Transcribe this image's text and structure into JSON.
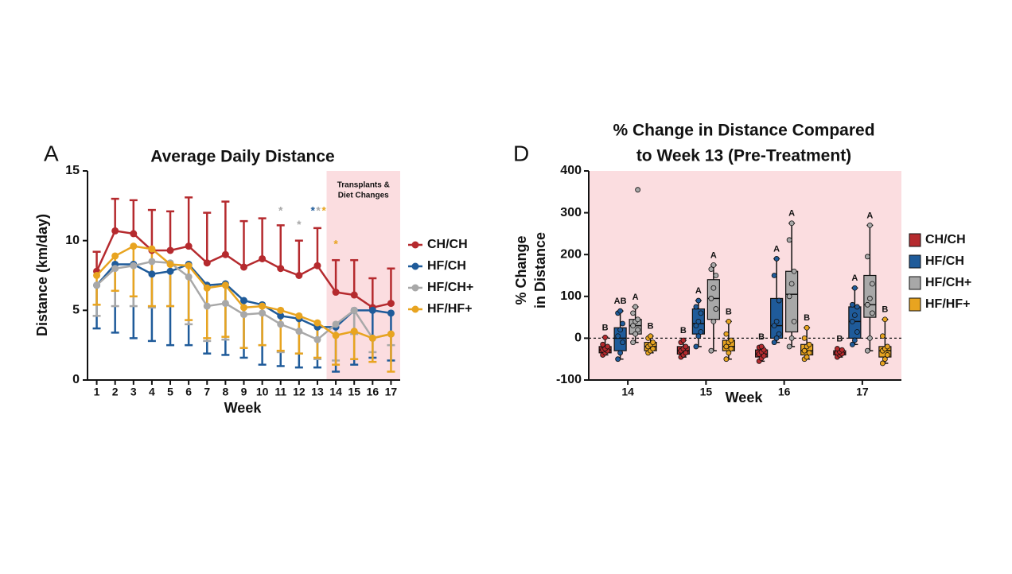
{
  "chart_data": [
    {
      "type": "line",
      "panel": "A",
      "title": "Average Daily Distance",
      "x_label": "Week",
      "y_label": "Distance (km/day)",
      "x": [
        1,
        2,
        3,
        4,
        5,
        6,
        7,
        8,
        9,
        10,
        11,
        12,
        13,
        14,
        15,
        16,
        17
      ],
      "xlim": [
        0.5,
        17.5
      ],
      "xticks": [
        1,
        2,
        3,
        4,
        5,
        6,
        7,
        8,
        9,
        10,
        11,
        12,
        13,
        14,
        15,
        16,
        17
      ],
      "ylim": [
        0,
        15
      ],
      "yticks": [
        0,
        5,
        10,
        15
      ],
      "shade": {
        "from": 13.5,
        "to": 17.5,
        "color": "#fbdde0",
        "label": [
          "Transplants &",
          "Diet Changes"
        ]
      },
      "series": [
        {
          "name": "CH/CH",
          "color": "#b52a2e",
          "error_direction": "up",
          "values": [
            7.8,
            10.7,
            10.5,
            9.3,
            9.3,
            9.6,
            8.4,
            9.0,
            8.1,
            8.7,
            8.0,
            7.5,
            8.2,
            6.3,
            6.1,
            5.2,
            5.5
          ],
          "errors": [
            1.4,
            2.3,
            2.4,
            2.9,
            2.8,
            3.5,
            3.6,
            3.8,
            3.3,
            2.9,
            3.1,
            2.5,
            2.7,
            2.3,
            2.5,
            2.1,
            2.5
          ]
        },
        {
          "name": "HF/CH",
          "color": "#1f5b9a",
          "error_direction": "down",
          "values": [
            6.8,
            8.3,
            8.3,
            7.6,
            7.8,
            8.3,
            6.8,
            6.9,
            5.7,
            5.4,
            4.6,
            4.4,
            3.8,
            3.8,
            5.0,
            5.0,
            4.8
          ],
          "errors": [
            3.1,
            4.9,
            5.3,
            4.8,
            5.3,
            5.8,
            4.9,
            5.1,
            4.1,
            4.3,
            3.6,
            3.5,
            2.9,
            3.2,
            3.9,
            3.4,
            3.4
          ]
        },
        {
          "name": "HF/CH+",
          "color": "#a8a8a8",
          "error_direction": "down",
          "values": [
            6.8,
            8.0,
            8.2,
            8.5,
            8.4,
            7.4,
            5.3,
            5.5,
            4.7,
            4.8,
            4.0,
            3.5,
            2.9,
            4.0,
            5.0,
            3.0,
            3.3
          ],
          "errors": [
            2.2,
            2.7,
            2.9,
            3.3,
            3.1,
            3.4,
            2.5,
            2.6,
            2.4,
            2.3,
            2.0,
            1.6,
            1.4,
            2.6,
            1.7,
            1.0,
            0.8
          ]
        },
        {
          "name": "HF/HF+",
          "color": "#e8a420",
          "error_direction": "down",
          "values": [
            7.5,
            8.9,
            9.6,
            9.4,
            8.3,
            8.2,
            6.6,
            6.8,
            5.2,
            5.3,
            5.0,
            4.6,
            4.1,
            3.2,
            3.5,
            3.0,
            3.3
          ],
          "errors": [
            2.1,
            2.5,
            3.6,
            4.1,
            3.0,
            3.9,
            3.6,
            3.7,
            2.9,
            2.8,
            2.9,
            2.7,
            2.5,
            2.1,
            2.0,
            1.7,
            2.7
          ]
        }
      ],
      "annotations": [
        {
          "text": "*",
          "x": 11,
          "y": 12.1,
          "color": "#a8a8a8"
        },
        {
          "text": "*",
          "x": 12,
          "y": 11.1,
          "color": "#a8a8a8"
        },
        {
          "text": "*",
          "x": 12.75,
          "y": 12.1,
          "color": "#1f5b9a"
        },
        {
          "text": "*",
          "x": 13.05,
          "y": 12.1,
          "color": "#a8a8a8"
        },
        {
          "text": "*",
          "x": 13.35,
          "y": 12.1,
          "color": "#e8a420"
        },
        {
          "text": "*",
          "x": 14,
          "y": 9.7,
          "color": "#e8a420"
        }
      ]
    },
    {
      "type": "box",
      "panel": "D",
      "title": [
        "% Change in Distance Compared",
        "to Week 13 (Pre-Treatment)"
      ],
      "x_label": "Week",
      "y_label": [
        "% Change",
        "in Distance"
      ],
      "background": "#fbdde0",
      "categories": [
        "14",
        "15",
        "16",
        "17"
      ],
      "ylim": [
        -100,
        400
      ],
      "yticks": [
        -100,
        0,
        100,
        200,
        300,
        400
      ],
      "ref_line": 0,
      "series": [
        {
          "name": "CH/CH",
          "color": "#b52a2e",
          "boxes": [
            {
              "min": -40,
              "q1": -35,
              "median": -28,
              "q3": -20,
              "max": 2,
              "letter": "B",
              "points": [
                -40,
                -35,
                -30,
                -28,
                -25,
                -20,
                -15,
                2
              ]
            },
            {
              "min": -45,
              "q1": -38,
              "median": -30,
              "q3": -20,
              "max": -5,
              "letter": "B",
              "points": [
                -45,
                -40,
                -35,
                -30,
                -25,
                -20,
                -10,
                -5
              ]
            },
            {
              "min": -55,
              "q1": -45,
              "median": -38,
              "q3": -28,
              "max": -20,
              "letter": "B",
              "points": [
                -55,
                -48,
                -42,
                -38,
                -33,
                -28,
                -22,
                -20
              ]
            },
            {
              "min": -45,
              "q1": -40,
              "median": -35,
              "q3": -30,
              "max": -25,
              "letter": "B",
              "points": [
                -45,
                -40,
                -37,
                -35,
                -32,
                -28,
                -25
              ]
            }
          ]
        },
        {
          "name": "HF/CH",
          "color": "#1f5b9a",
          "boxes": [
            {
              "min": -50,
              "q1": -30,
              "median": 0,
              "q3": 25,
              "max": 65,
              "letter": "AB",
              "points": [
                -50,
                -35,
                -10,
                5,
                20,
                35,
                60,
                65
              ]
            },
            {
              "min": -20,
              "q1": 10,
              "median": 35,
              "q3": 70,
              "max": 90,
              "letter": "A",
              "points": [
                -20,
                5,
                15,
                30,
                40,
                60,
                75,
                90
              ]
            },
            {
              "min": -10,
              "q1": 0,
              "median": 30,
              "q3": 95,
              "max": 190,
              "letter": "A",
              "points": [
                -10,
                0,
                10,
                30,
                40,
                90,
                150,
                190
              ]
            },
            {
              "min": -15,
              "q1": 0,
              "median": 40,
              "q3": 75,
              "max": 120,
              "letter": "A",
              "points": [
                -15,
                -5,
                15,
                40,
                55,
                75,
                80,
                120
              ]
            }
          ]
        },
        {
          "name": "HF/CH+",
          "color": "#a8a8a8",
          "boxes": [
            {
              "min": -10,
              "q1": 10,
              "median": 30,
              "q3": 45,
              "max": 75,
              "letter": "A",
              "points": [
                -10,
                10,
                20,
                30,
                40,
                45,
                60,
                75,
                355
              ]
            },
            {
              "min": -30,
              "q1": 45,
              "median": 95,
              "q3": 140,
              "max": 175,
              "letter": "A",
              "points": [
                -30,
                40,
                70,
                95,
                120,
                150,
                165,
                175
              ]
            },
            {
              "min": -20,
              "q1": 15,
              "median": 105,
              "q3": 160,
              "max": 275,
              "letter": "A",
              "points": [
                -20,
                0,
                40,
                100,
                130,
                160,
                235,
                275
              ]
            },
            {
              "min": -30,
              "q1": 50,
              "median": 80,
              "q3": 150,
              "max": 270,
              "letter": "A",
              "points": [
                -30,
                0,
                60,
                80,
                95,
                130,
                195,
                270
              ]
            }
          ]
        },
        {
          "name": "HF/HF+",
          "color": "#e8a420",
          "boxes": [
            {
              "min": -35,
              "q1": -30,
              "median": -20,
              "q3": -10,
              "max": 5,
              "letter": "B",
              "points": [
                -35,
                -30,
                -25,
                -20,
                -15,
                -10,
                0,
                5
              ]
            },
            {
              "min": -50,
              "q1": -30,
              "median": -20,
              "q3": -5,
              "max": 40,
              "letter": "B",
              "points": [
                -50,
                -35,
                -25,
                -20,
                -10,
                -5,
                10,
                40
              ]
            },
            {
              "min": -50,
              "q1": -40,
              "median": -30,
              "q3": -15,
              "max": 25,
              "letter": "B",
              "points": [
                -50,
                -45,
                -35,
                -30,
                -20,
                -15,
                0,
                25
              ]
            },
            {
              "min": -60,
              "q1": -45,
              "median": -30,
              "q3": -20,
              "max": 45,
              "letter": "B",
              "points": [
                -60,
                -50,
                -40,
                -30,
                -25,
                -20,
                5,
                45
              ]
            }
          ]
        }
      ]
    }
  ]
}
